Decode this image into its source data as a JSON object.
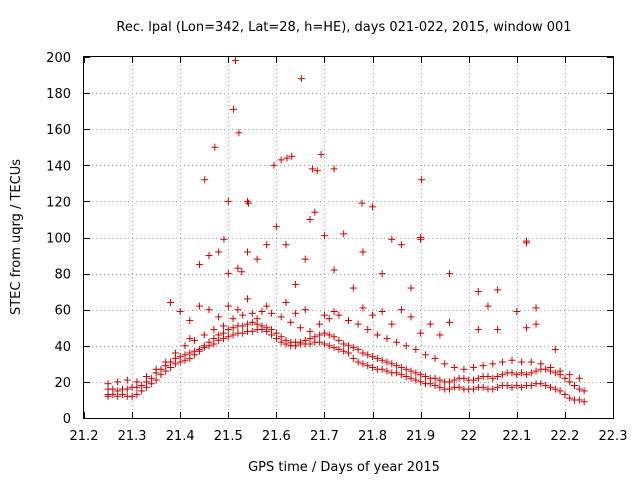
{
  "chart_data": {
    "type": "scatter",
    "title": "Rec. lpal (Lon=342, Lat=28, h=HE), days 021-022, 2015, window 001",
    "xlabel": "GPS time / Days of year 2015",
    "ylabel": "STEC from uqrg / TECUs",
    "xlim": [
      21.2,
      22.3
    ],
    "ylim": [
      0,
      200
    ],
    "xticks": [
      "21.2",
      "21.3",
      "21.4",
      "21.5",
      "21.6",
      "21.7",
      "21.8",
      "21.9",
      "22",
      "22.1",
      "22.2",
      "22.3"
    ],
    "yticks": [
      "0",
      "20",
      "40",
      "60",
      "80",
      "100",
      "120",
      "140",
      "160",
      "180",
      "200"
    ],
    "grid": true,
    "marker": "+",
    "color": "#cc0000",
    "series": [
      {
        "name": "STEC",
        "x": [
          21.25,
          21.25,
          21.26,
          21.27,
          21.28,
          21.29,
          21.3,
          21.31,
          21.32,
          21.33,
          21.34,
          21.35,
          21.36,
          21.37,
          21.38,
          21.39,
          21.4,
          21.41,
          21.42,
          21.43,
          21.44,
          21.45,
          21.46,
          21.47,
          21.48,
          21.49,
          21.5,
          21.51,
          21.52,
          21.53,
          21.54,
          21.55,
          21.56,
          21.57,
          21.58,
          21.59,
          21.6,
          21.61,
          21.62,
          21.63,
          21.64,
          21.65,
          21.66,
          21.67,
          21.68,
          21.69,
          21.7,
          21.71,
          21.72,
          21.73,
          21.74,
          21.75,
          21.76,
          21.77,
          21.78,
          21.79,
          21.8,
          21.81,
          21.82,
          21.83,
          21.84,
          21.85,
          21.86,
          21.87,
          21.88,
          21.89,
          21.9,
          21.91,
          21.92,
          21.93,
          21.94,
          21.95,
          21.96,
          21.97,
          21.98,
          21.99,
          22.0,
          22.01,
          22.02,
          22.03,
          22.04,
          22.05,
          22.06,
          22.07,
          22.08,
          22.09,
          22.1,
          22.11,
          22.12,
          22.13,
          22.14,
          22.15,
          22.16,
          22.17,
          22.18,
          22.19,
          22.2,
          22.21,
          22.22,
          22.23,
          22.24,
          21.25,
          21.26,
          21.27,
          21.28,
          21.29,
          21.3,
          21.31,
          21.32,
          21.33,
          21.34,
          21.35,
          21.36,
          21.37,
          21.38,
          21.39,
          21.4,
          21.41,
          21.42,
          21.43,
          21.44,
          21.45,
          21.46,
          21.47,
          21.48,
          21.49,
          21.5,
          21.51,
          21.52,
          21.53,
          21.54,
          21.55,
          21.56,
          21.57,
          21.58,
          21.59,
          21.6,
          21.61,
          21.62,
          21.63,
          21.64,
          21.65,
          21.66,
          21.67,
          21.68,
          21.69,
          21.7,
          21.71,
          21.72,
          21.73,
          21.74,
          21.75,
          21.76,
          21.77,
          21.78,
          21.79,
          21.8,
          21.81,
          21.82,
          21.83,
          21.84,
          21.85,
          21.86,
          21.87,
          21.88,
          21.89,
          21.9,
          21.91,
          21.92,
          21.93,
          21.94,
          21.95,
          21.96,
          21.97,
          21.98,
          21.99,
          22.0,
          22.01,
          22.02,
          22.03,
          22.04,
          22.05,
          22.06,
          22.07,
          22.08,
          22.09,
          22.1,
          22.11,
          22.12,
          22.13,
          22.14,
          22.15,
          22.16,
          22.17,
          22.18,
          22.19,
          22.2,
          22.21,
          22.22,
          22.23,
          22.24,
          21.25,
          21.27,
          21.29,
          21.31,
          21.33,
          21.35,
          21.37,
          21.39,
          21.41,
          21.43,
          21.45,
          21.47,
          21.49,
          21.51,
          21.53,
          21.55,
          21.57,
          21.59,
          21.61,
          21.63,
          21.65,
          21.67,
          21.69,
          21.71,
          21.73,
          21.75,
          21.77,
          21.79,
          21.81,
          21.83,
          21.85,
          21.87,
          21.89,
          21.91,
          21.93,
          21.95,
          21.97,
          21.99,
          22.01,
          22.03,
          22.05,
          22.07,
          22.09,
          22.11,
          22.13,
          22.15,
          22.17,
          22.19,
          22.21,
          22.23,
          21.38,
          21.4,
          21.42,
          21.44,
          21.46,
          21.48,
          21.5,
          21.52,
          21.54,
          21.56,
          21.58,
          21.62,
          21.64,
          21.66,
          21.7,
          21.72,
          21.76,
          21.78,
          21.8,
          21.82,
          21.84,
          21.86,
          21.88,
          21.9,
          21.94,
          21.96,
          22.02,
          22.04,
          22.06,
          22.1,
          22.12,
          22.14,
          22.18,
          21.42,
          21.44,
          21.46,
          21.48,
          21.5,
          21.52,
          21.54,
          21.56,
          21.58,
          21.6,
          21.62,
          21.64,
          21.66,
          21.68,
          21.7,
          21.72,
          21.74,
          21.78,
          21.8,
          21.82,
          21.84,
          21.86,
          21.88,
          21.9,
          21.92,
          21.96,
          22.02,
          22.06,
          22.12,
          22.14,
          21.451,
          21.472,
          21.491,
          21.5,
          21.511,
          21.515,
          21.522,
          21.528,
          21.54,
          21.542,
          21.595,
          21.61,
          21.622,
          21.632,
          21.652,
          21.67,
          21.675,
          21.685,
          21.693,
          21.72,
          21.778,
          21.9,
          21.902,
          22.12
        ],
        "y": [
          12,
          13,
          13,
          12,
          13,
          12,
          12,
          13,
          15,
          17,
          19,
          21,
          24,
          26,
          28,
          30,
          31,
          32,
          33,
          35,
          37,
          39,
          40,
          41,
          43,
          44,
          45,
          46,
          47,
          47,
          48,
          48,
          49,
          49,
          48,
          46,
          44,
          42,
          41,
          40,
          40,
          41,
          41,
          41,
          42,
          42,
          41,
          40,
          39,
          38,
          37,
          36,
          33,
          31,
          30,
          29,
          28,
          27,
          27,
          26,
          25,
          25,
          24,
          23,
          22,
          21,
          20,
          19,
          19,
          18,
          17,
          16,
          16,
          17,
          17,
          16,
          16,
          16,
          17,
          17,
          16,
          16,
          17,
          18,
          18,
          17,
          18,
          17,
          18,
          18,
          19,
          19,
          18,
          17,
          16,
          15,
          13,
          11,
          10,
          10,
          9,
          16,
          16,
          15,
          16,
          16,
          17,
          17,
          18,
          20,
          22,
          25,
          27,
          29,
          31,
          33,
          34,
          35,
          36,
          37,
          38,
          40,
          42,
          44,
          46,
          47,
          49,
          50,
          51,
          51,
          52,
          53,
          52,
          51,
          50,
          49,
          47,
          45,
          43,
          42,
          42,
          42,
          43,
          44,
          45,
          46,
          47,
          46,
          45,
          43,
          41,
          40,
          39,
          38,
          36,
          35,
          34,
          33,
          32,
          31,
          30,
          29,
          28,
          27,
          26,
          25,
          24,
          23,
          22,
          22,
          21,
          20,
          20,
          21,
          22,
          22,
          21,
          21,
          22,
          23,
          23,
          22,
          23,
          24,
          25,
          25,
          24,
          25,
          24,
          25,
          26,
          27,
          27,
          26,
          25,
          24,
          22,
          20,
          18,
          16,
          15,
          19,
          20,
          21,
          20,
          23,
          27,
          31,
          36,
          40,
          43,
          46,
          49,
          51,
          55,
          57,
          58,
          59,
          58,
          56,
          53,
          50,
          48,
          52,
          55,
          57,
          54,
          52,
          49,
          46,
          44,
          42,
          40,
          38,
          35,
          33,
          30,
          28,
          27,
          28,
          29,
          30,
          31,
          32,
          31,
          31,
          30,
          28,
          26,
          24,
          22,
          64,
          59,
          54,
          62,
          60,
          56,
          62,
          60,
          66,
          55,
          62,
          64,
          58,
          60,
          57,
          59,
          72,
          61,
          57,
          59,
          52,
          60,
          56,
          47,
          46,
          80,
          70,
          62,
          49,
          59,
          50,
          61,
          38,
          44,
          85,
          90,
          92,
          80,
          83,
          92,
          88,
          96,
          106,
          96,
          74,
          88,
          114,
          101,
          82,
          102,
          92,
          117,
          80,
          99,
          96,
          72,
          99,
          52,
          53,
          49,
          71,
          98,
          52,
          132,
          150,
          99,
          120,
          171,
          198,
          158,
          81,
          120,
          119,
          140,
          143,
          144,
          145,
          188,
          110,
          138,
          137,
          146,
          138,
          119,
          100,
          132,
          97
        ]
      }
    ]
  }
}
